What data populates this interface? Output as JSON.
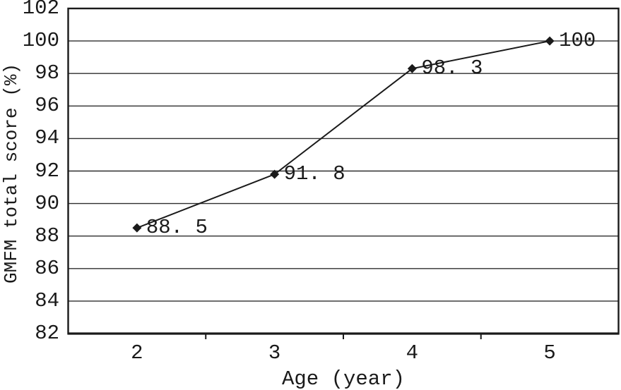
{
  "chart_data": {
    "type": "line",
    "title": "",
    "xlabel": "Age (year)",
    "ylabel": "GMFM total score (%)",
    "categories": [
      "2",
      "3",
      "4",
      "5"
    ],
    "series": [
      {
        "name": "GMFM total score",
        "values": [
          88.5,
          91.8,
          98.3,
          100
        ],
        "point_labels": [
          "88. 5",
          "91. 8",
          "98. 3",
          "100"
        ]
      }
    ],
    "ylim": [
      82,
      102
    ],
    "ytick_interval": 2,
    "yticks": [
      102,
      100,
      98,
      96,
      94,
      92,
      90,
      88,
      86,
      84,
      82
    ],
    "grid": "horizontal-only",
    "legend_position": "none",
    "marker": "filled-diamond",
    "colors": {
      "line": "#1a1a1a",
      "marker": "#1a1a1a",
      "grid": "#2e2e2e",
      "axis": "#1a1a1a",
      "text": "#1a1a1a",
      "background": "#ffffff"
    }
  }
}
